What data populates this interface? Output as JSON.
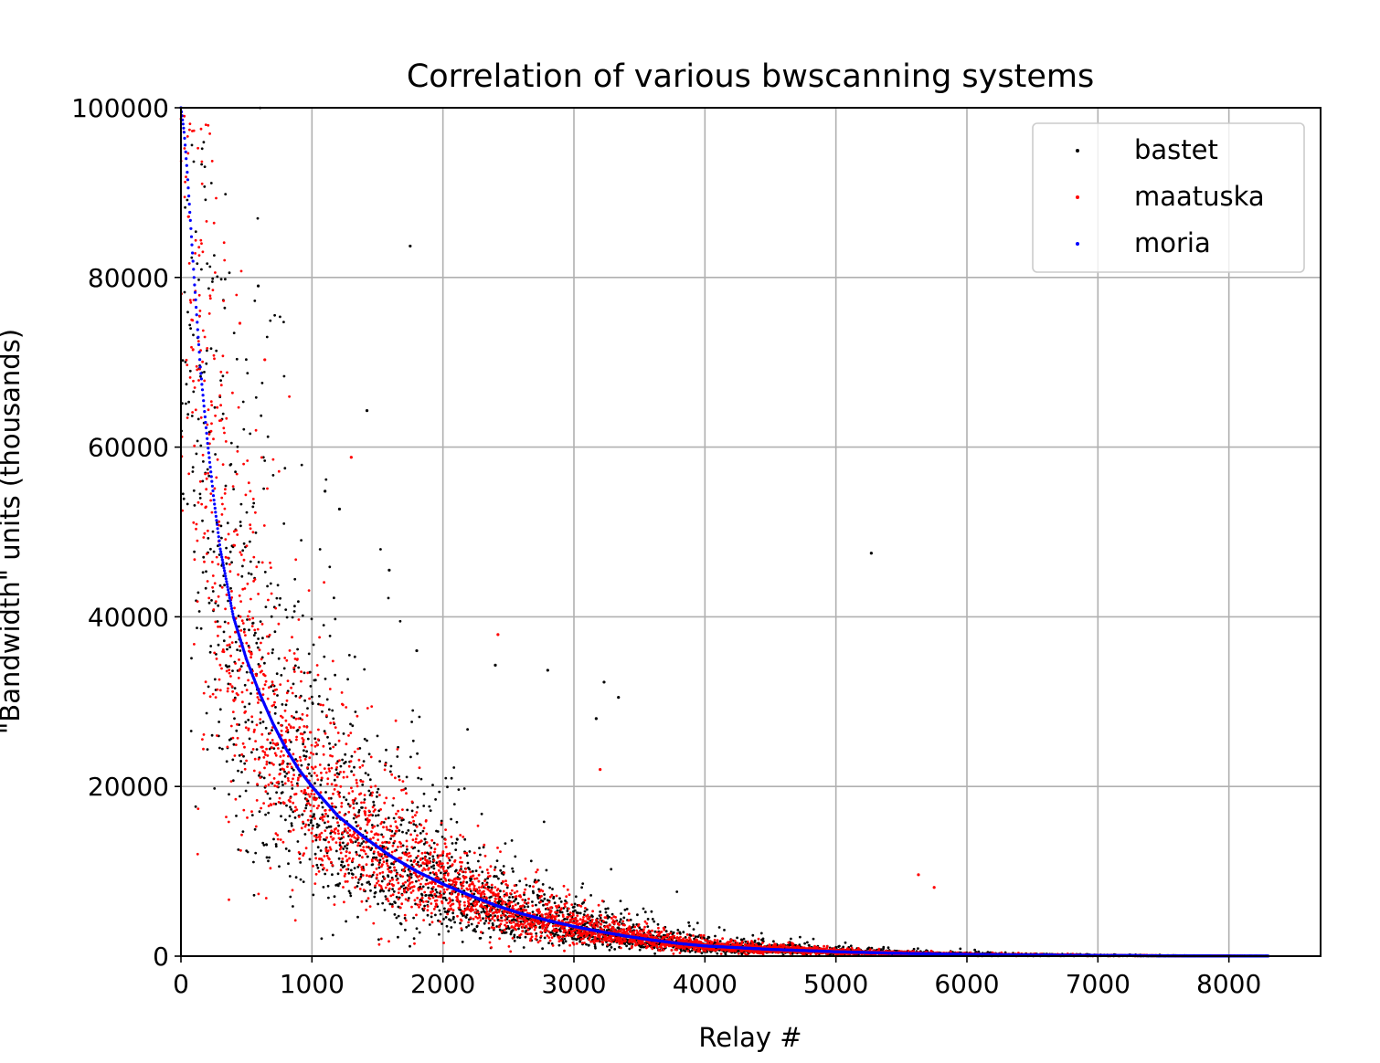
{
  "chart_data": {
    "type": "scatter",
    "title": "Correlation of various bwscanning systems",
    "xlabel": "Relay #",
    "ylabel": "\"Bandwidth\" units (thousands)",
    "xlim": [
      0,
      8700
    ],
    "ylim": [
      0,
      100000
    ],
    "xticks": [
      0,
      1000,
      2000,
      3000,
      4000,
      5000,
      6000,
      7000,
      8000
    ],
    "yticks": [
      0,
      20000,
      40000,
      60000,
      80000,
      100000
    ],
    "xtick_labels": [
      "0",
      "1000",
      "2000",
      "3000",
      "4000",
      "5000",
      "6000",
      "7000",
      "8000"
    ],
    "ytick_labels": [
      "0",
      "20000",
      "40000",
      "60000",
      "80000",
      "100000"
    ],
    "grid": true,
    "legend_position": "top-right",
    "n_relays": 8300,
    "series": [
      {
        "name": "bastet",
        "color": "#000000",
        "description_points": "scattered around moria curve, wide spread"
      },
      {
        "name": "maatuska",
        "color": "#ff0000",
        "description_points": "scattered around moria curve, dense"
      },
      {
        "name": "moria",
        "color": "#0000ff",
        "description_points": "smooth monotonically decreasing curve"
      }
    ],
    "moria_curve": {
      "x": [
        0,
        25,
        50,
        75,
        100,
        150,
        200,
        250,
        300,
        400,
        500,
        600,
        700,
        800,
        900,
        1000,
        1200,
        1400,
        1600,
        1800,
        2000,
        2200,
        2400,
        2600,
        2800,
        3000,
        3200,
        3400,
        3600,
        3800,
        4000,
        4500,
        5000,
        5500,
        6000,
        6500,
        7000,
        7500,
        8000,
        8300
      ],
      "y": [
        100000,
        97000,
        92000,
        86000,
        80000,
        69000,
        61000,
        54000,
        48000,
        40000,
        35000,
        31000,
        27500,
        24500,
        22000,
        20000,
        16500,
        14000,
        11800,
        10000,
        8500,
        7200,
        6000,
        5000,
        4200,
        3500,
        2900,
        2350,
        1900,
        1500,
        1200,
        800,
        520,
        330,
        210,
        130,
        80,
        45,
        20,
        10
      ]
    },
    "outliers": {
      "bastet": [
        [
          1750,
          83700
        ],
        [
          1420,
          64300
        ],
        [
          5270,
          47500
        ],
        [
          590,
          79000
        ],
        [
          1100,
          54800
        ],
        [
          1210,
          52700
        ],
        [
          1590,
          45500
        ],
        [
          1800,
          36000
        ],
        [
          2400,
          34300
        ],
        [
          2800,
          33700
        ],
        [
          3230,
          32300
        ],
        [
          3340,
          30500
        ],
        [
          3170,
          28000
        ]
      ],
      "maatuska": [
        [
          1300,
          58800
        ],
        [
          640,
          70300
        ],
        [
          450,
          74600
        ],
        [
          2420,
          37900
        ],
        [
          3200,
          22000
        ],
        [
          5630,
          9600
        ],
        [
          5750,
          8100
        ]
      ]
    }
  }
}
